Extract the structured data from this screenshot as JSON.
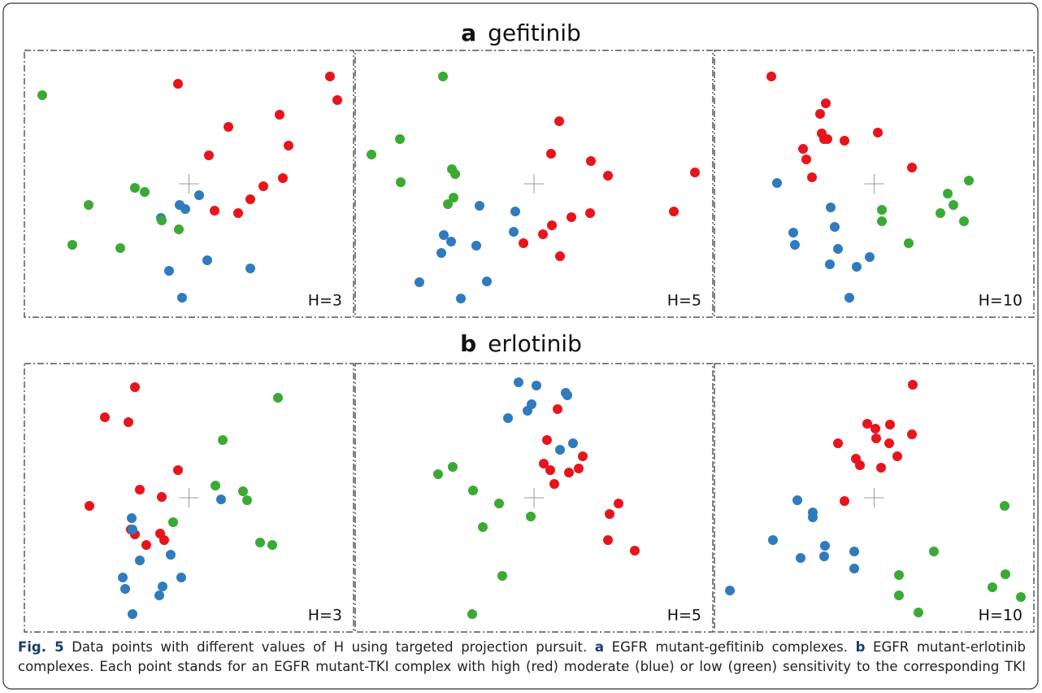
{
  "figure": {
    "sections": [
      {
        "label": "a",
        "title": "gefitinib"
      },
      {
        "label": "b",
        "title": "erlotinib"
      }
    ],
    "caption": [
      {
        "text": "Fig. 5",
        "bold": true
      },
      {
        "text": " Data points with different values of H using targeted projection pursuit. ",
        "bold": false
      },
      {
        "text": "a",
        "bold": true
      },
      {
        "text": " EGFR mutant-gefitinib complexes. ",
        "bold": false
      },
      {
        "text": "b",
        "bold": true
      },
      {
        "text": " EGFR mutant-erlotinib complexes. Each point stands for an EGFR mutant-TKI complex with high (red) moderate (blue) or low (green) sensitivity to the corresponding TKI",
        "bold": false
      }
    ]
  },
  "chart_data": [
    {
      "type": "scatter",
      "annotation": "H=3",
      "xlim": [
        0,
        405
      ],
      "ylim": [
        0,
        328
      ],
      "series": [
        {
          "color": "#e8141c",
          "x": [
            189,
            376,
            385,
            314,
            251,
            325,
            227,
            318,
            294,
            278,
            234,
            263
          ],
          "y": [
            287,
            296,
            267,
            249,
            234,
            211,
            199,
            171,
            161,
            145,
            131,
            128
          ]
        },
        {
          "color": "#2f7bbd",
          "x": [
            215,
            191,
            198,
            168,
            225,
            278,
            178,
            194
          ],
          "y": [
            150,
            138,
            133,
            122,
            70,
            60,
            57,
            24
          ]
        },
        {
          "color": "#3aaa35",
          "x": [
            22,
            136,
            148,
            79,
            169,
            190,
            59,
            118
          ],
          "y": [
            273,
            159,
            154,
            138,
            119,
            108,
            89,
            85
          ]
        }
      ]
    },
    {
      "type": "scatter",
      "annotation": "H=5",
      "xlim": [
        0,
        440
      ],
      "ylim": [
        0,
        328
      ],
      "series": [
        {
          "color": "#e8141c",
          "x": [
            251,
            241,
            290,
            311,
            418,
            392,
            289,
            266,
            242,
            231,
            207,
            252
          ],
          "y": [
            241,
            201,
            192,
            174,
            178,
            130,
            128,
            123,
            113,
            102,
            91,
            75
          ]
        },
        {
          "color": "#2f7bbd",
          "x": [
            153,
            197,
            195,
            109,
            118,
            149,
            106,
            79,
            162,
            130
          ],
          "y": [
            137,
            130,
            105,
            101,
            93,
            88,
            79,
            43,
            44,
            23
          ]
        },
        {
          "color": "#3aaa35",
          "x": [
            108,
            55,
            20,
            119,
            123,
            56,
            121,
            114
          ],
          "y": [
            296,
            219,
            200,
            182,
            176,
            166,
            147,
            139
          ]
        }
      ]
    },
    {
      "type": "scatter",
      "annotation": "H=10",
      "xlim": [
        0,
        393
      ],
      "ylim": [
        0,
        328
      ],
      "series": [
        {
          "color": "#e8141c",
          "x": [
            70,
            137,
            130,
            132,
            139,
            135,
            160,
            201,
            109,
            113,
            243,
            120
          ],
          "y": [
            296,
            263,
            250,
            226,
            219,
            219,
            217,
            227,
            207,
            194,
            184,
            172
          ]
        },
        {
          "color": "#2f7bbd",
          "x": [
            77,
            143,
            148,
            97,
            99,
            152,
            191,
            142,
            175,
            166
          ],
          "y": [
            165,
            135,
            111,
            104,
            89,
            84,
            74,
            65,
            62,
            24
          ]
        },
        {
          "color": "#3aaa35",
          "x": [
            313,
            287,
            294,
            206,
            278,
            206,
            307,
            239
          ],
          "y": [
            168,
            152,
            138,
            132,
            128,
            118,
            118,
            91
          ]
        }
      ]
    },
    {
      "type": "scatter",
      "annotation": "H=3",
      "xlim": [
        0,
        405
      ],
      "ylim": [
        0,
        330
      ],
      "series": [
        {
          "color": "#e8141c",
          "x": [
            136,
            99,
            128,
            189,
            142,
            169,
            80,
            131,
            136,
            167,
            172,
            150
          ],
          "y": [
            301,
            264,
            258,
            199,
            175,
            166,
            155,
            126,
            120,
            121,
            113,
            107
          ]
        },
        {
          "color": "#2f7bbd",
          "x": [
            242,
            132,
            133,
            180,
            142,
            193,
            121,
            170,
            124,
            166,
            133
          ],
          "y": [
            163,
            140,
            126,
            95,
            88,
            67,
            67,
            56,
            53,
            45,
            22
          ]
        },
        {
          "color": "#3aaa35",
          "x": [
            312,
            244,
            235,
            269,
            274,
            183,
            290,
            305
          ],
          "y": [
            288,
            236,
            180,
            173,
            162,
            135,
            110,
            107
          ]
        }
      ]
    },
    {
      "type": "scatter",
      "annotation": "H=5",
      "xlim": [
        0,
        440
      ],
      "ylim": [
        0,
        330
      ],
      "series": [
        {
          "color": "#e8141c",
          "x": [
            249,
            236,
            280,
            232,
            275,
            240,
            263,
            245,
            324,
            313,
            311,
            344
          ],
          "y": [
            274,
            236,
            216,
            207,
            201,
            199,
            196,
            182,
            158,
            145,
            113,
            100
          ]
        },
        {
          "color": "#2f7bbd",
          "x": [
            201,
            223,
            259,
            261,
            217,
            212,
            188,
            268,
            252
          ],
          "y": [
            307,
            303,
            294,
            291,
            280,
            272,
            263,
            232,
            224
          ]
        },
        {
          "color": "#3aaa35",
          "x": [
            120,
            102,
            145,
            177,
            216,
            157,
            181,
            144
          ],
          "y": [
            203,
            194,
            174,
            158,
            142,
            129,
            69,
            22
          ]
        }
      ]
    },
    {
      "type": "scatter",
      "annotation": "H=10",
      "xlim": [
        0,
        393
      ],
      "ylim": [
        0,
        330
      ],
      "series": [
        {
          "color": "#e8141c",
          "x": [
            244,
            188,
            198,
            216,
            152,
            199,
            215,
            243,
            174,
            179,
            225,
            205,
            160
          ],
          "y": [
            304,
            256,
            250,
            255,
            232,
            238,
            232,
            243,
            213,
            205,
            216,
            202,
            161
          ]
        },
        {
          "color": "#2f7bbd",
          "x": [
            102,
            121,
            121,
            72,
            136,
            172,
            106,
            135,
            172,
            19
          ],
          "y": [
            162,
            147,
            141,
            113,
            106,
            99,
            91,
            93,
            78,
            51
          ]
        },
        {
          "color": "#3aaa35",
          "x": [
            357,
            270,
            227,
            358,
            342,
            227,
            251,
            377
          ],
          "y": [
            155,
            99,
            70,
            71,
            55,
            45,
            24,
            43
          ]
        }
      ]
    }
  ]
}
